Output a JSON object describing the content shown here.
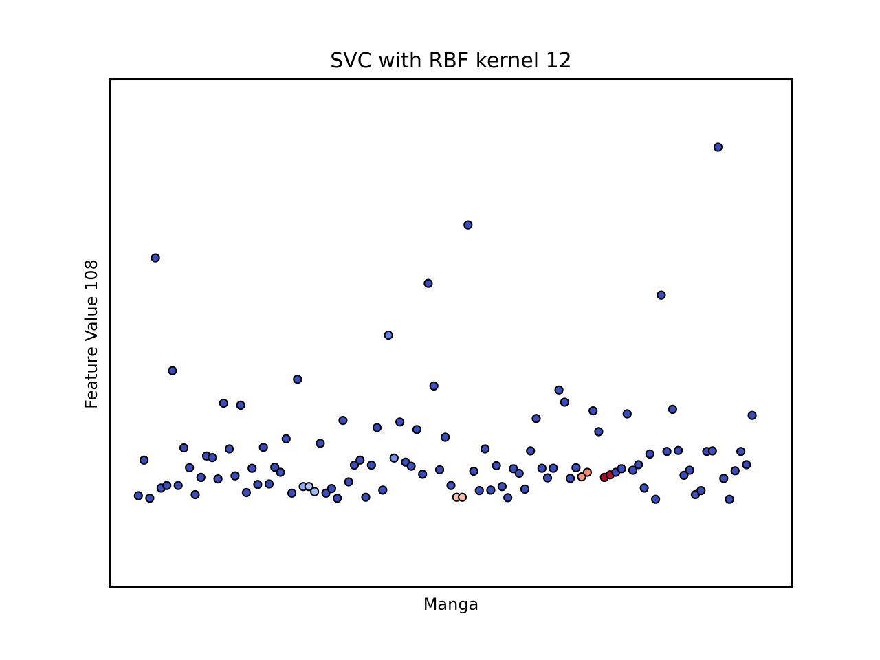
{
  "chart_data": {
    "type": "scatter",
    "title": "SVC with RBF kernel 12",
    "xlabel": "Manga",
    "ylabel": "Feature Value 108",
    "xlim": [
      0,
      120
    ],
    "ylim": [
      0,
      100
    ],
    "xticks": "none",
    "yticks": "none",
    "grid": false,
    "legend": "none",
    "colormap": "coolwarm",
    "marker_edge_color": "#000000",
    "points": [
      {
        "x": 5,
        "y": 18.0,
        "c": 0.0
      },
      {
        "x": 6,
        "y": 25.0,
        "c": 0.0
      },
      {
        "x": 7,
        "y": 17.5,
        "c": 0.0
      },
      {
        "x": 8,
        "y": 64.8,
        "c": 0.0
      },
      {
        "x": 9,
        "y": 19.5,
        "c": 0.0
      },
      {
        "x": 10,
        "y": 20.0,
        "c": 0.0
      },
      {
        "x": 11,
        "y": 42.6,
        "c": 0.0
      },
      {
        "x": 12,
        "y": 20.0,
        "c": 0.0
      },
      {
        "x": 13,
        "y": 27.4,
        "c": 0.0
      },
      {
        "x": 14,
        "y": 23.5,
        "c": 0.0
      },
      {
        "x": 15,
        "y": 18.2,
        "c": 0.0
      },
      {
        "x": 16,
        "y": 21.6,
        "c": 0.0
      },
      {
        "x": 17,
        "y": 25.8,
        "c": 0.0
      },
      {
        "x": 18,
        "y": 25.5,
        "c": 0.0
      },
      {
        "x": 19,
        "y": 21.3,
        "c": 0.0
      },
      {
        "x": 20,
        "y": 36.2,
        "c": 0.0
      },
      {
        "x": 21,
        "y": 27.2,
        "c": 0.0
      },
      {
        "x": 22,
        "y": 21.9,
        "c": 0.0
      },
      {
        "x": 23,
        "y": 35.8,
        "c": 0.0
      },
      {
        "x": 24,
        "y": 18.6,
        "c": 0.0
      },
      {
        "x": 25,
        "y": 23.4,
        "c": 0.0
      },
      {
        "x": 26,
        "y": 20.2,
        "c": 0.0
      },
      {
        "x": 27,
        "y": 27.5,
        "c": 0.0
      },
      {
        "x": 28,
        "y": 20.3,
        "c": 0.0
      },
      {
        "x": 29,
        "y": 23.6,
        "c": 0.0
      },
      {
        "x": 30,
        "y": 22.6,
        "c": 0.0
      },
      {
        "x": 31,
        "y": 29.2,
        "c": 0.0
      },
      {
        "x": 32,
        "y": 18.5,
        "c": 0.0
      },
      {
        "x": 33,
        "y": 40.9,
        "c": 0.0
      },
      {
        "x": 34,
        "y": 19.8,
        "c": 0.3
      },
      {
        "x": 35,
        "y": 19.8,
        "c": 0.4
      },
      {
        "x": 36,
        "y": 18.8,
        "c": 0.35
      },
      {
        "x": 37,
        "y": 28.3,
        "c": 0.0
      },
      {
        "x": 38,
        "y": 18.5,
        "c": 0.0
      },
      {
        "x": 39,
        "y": 19.4,
        "c": 0.0
      },
      {
        "x": 40,
        "y": 17.5,
        "c": 0.0
      },
      {
        "x": 41,
        "y": 32.8,
        "c": 0.0
      },
      {
        "x": 42,
        "y": 20.7,
        "c": 0.0
      },
      {
        "x": 43,
        "y": 24.0,
        "c": 0.0
      },
      {
        "x": 44,
        "y": 25.0,
        "c": 0.0
      },
      {
        "x": 45,
        "y": 17.7,
        "c": 0.0
      },
      {
        "x": 46,
        "y": 24.0,
        "c": 0.0
      },
      {
        "x": 47,
        "y": 31.4,
        "c": 0.0
      },
      {
        "x": 48,
        "y": 19.1,
        "c": 0.0
      },
      {
        "x": 49,
        "y": 49.6,
        "c": 0.15
      },
      {
        "x": 50,
        "y": 25.4,
        "c": 0.2
      },
      {
        "x": 51,
        "y": 32.5,
        "c": 0.0
      },
      {
        "x": 52,
        "y": 24.6,
        "c": 0.0
      },
      {
        "x": 53,
        "y": 23.8,
        "c": 0.0
      },
      {
        "x": 54,
        "y": 31.0,
        "c": 0.0
      },
      {
        "x": 55,
        "y": 22.2,
        "c": 0.0
      },
      {
        "x": 56,
        "y": 59.8,
        "c": 0.0
      },
      {
        "x": 57,
        "y": 39.6,
        "c": 0.0
      },
      {
        "x": 58,
        "y": 23.1,
        "c": 0.0
      },
      {
        "x": 59,
        "y": 29.5,
        "c": 0.0
      },
      {
        "x": 60,
        "y": 20.0,
        "c": 0.0
      },
      {
        "x": 61,
        "y": 17.7,
        "c": 0.6
      },
      {
        "x": 62,
        "y": 17.7,
        "c": 0.62
      },
      {
        "x": 63,
        "y": 71.3,
        "c": 0.0
      },
      {
        "x": 64,
        "y": 22.8,
        "c": 0.0
      },
      {
        "x": 65,
        "y": 19.0,
        "c": 0.0
      },
      {
        "x": 66,
        "y": 27.2,
        "c": 0.0
      },
      {
        "x": 67,
        "y": 19.1,
        "c": 0.0
      },
      {
        "x": 68,
        "y": 23.9,
        "c": 0.0
      },
      {
        "x": 69,
        "y": 19.8,
        "c": 0.0
      },
      {
        "x": 70,
        "y": 17.6,
        "c": 0.0
      },
      {
        "x": 71,
        "y": 23.3,
        "c": 0.0
      },
      {
        "x": 72,
        "y": 22.4,
        "c": 0.0
      },
      {
        "x": 73,
        "y": 19.3,
        "c": 0.0
      },
      {
        "x": 74,
        "y": 26.8,
        "c": 0.0
      },
      {
        "x": 75,
        "y": 33.2,
        "c": 0.0
      },
      {
        "x": 76,
        "y": 23.4,
        "c": 0.0
      },
      {
        "x": 77,
        "y": 21.5,
        "c": 0.0
      },
      {
        "x": 78,
        "y": 23.4,
        "c": 0.0
      },
      {
        "x": 79,
        "y": 38.8,
        "c": 0.0
      },
      {
        "x": 80,
        "y": 36.4,
        "c": 0.0
      },
      {
        "x": 81,
        "y": 21.4,
        "c": 0.0
      },
      {
        "x": 82,
        "y": 23.5,
        "c": 0.0
      },
      {
        "x": 83,
        "y": 21.7,
        "c": 0.75
      },
      {
        "x": 84,
        "y": 22.6,
        "c": 0.78
      },
      {
        "x": 85,
        "y": 34.7,
        "c": 0.0
      },
      {
        "x": 86,
        "y": 30.6,
        "c": 0.0
      },
      {
        "x": 87,
        "y": 21.6,
        "c": 1.0
      },
      {
        "x": 88,
        "y": 22.1,
        "c": 0.98
      },
      {
        "x": 89,
        "y": 22.6,
        "c": 0.0
      },
      {
        "x": 90,
        "y": 23.3,
        "c": 0.0
      },
      {
        "x": 91,
        "y": 34.1,
        "c": 0.0
      },
      {
        "x": 92,
        "y": 23.0,
        "c": 0.0
      },
      {
        "x": 93,
        "y": 24.1,
        "c": 0.0
      },
      {
        "x": 94,
        "y": 19.5,
        "c": 0.0
      },
      {
        "x": 95,
        "y": 26.2,
        "c": 0.0
      },
      {
        "x": 96,
        "y": 17.3,
        "c": 0.0
      },
      {
        "x": 97,
        "y": 57.5,
        "c": 0.0
      },
      {
        "x": 98,
        "y": 26.7,
        "c": 0.0
      },
      {
        "x": 99,
        "y": 35.0,
        "c": 0.0
      },
      {
        "x": 100,
        "y": 26.9,
        "c": 0.0
      },
      {
        "x": 101,
        "y": 22.0,
        "c": 0.0
      },
      {
        "x": 102,
        "y": 23.0,
        "c": 0.0
      },
      {
        "x": 103,
        "y": 18.2,
        "c": 0.0
      },
      {
        "x": 104,
        "y": 19.0,
        "c": 0.0
      },
      {
        "x": 105,
        "y": 26.7,
        "c": 0.0
      },
      {
        "x": 106,
        "y": 26.8,
        "c": 0.0
      },
      {
        "x": 107,
        "y": 86.6,
        "c": 0.0
      },
      {
        "x": 108,
        "y": 21.4,
        "c": 0.0
      },
      {
        "x": 109,
        "y": 17.3,
        "c": 0.0
      },
      {
        "x": 110,
        "y": 22.9,
        "c": 0.0
      },
      {
        "x": 111,
        "y": 26.7,
        "c": 0.0
      },
      {
        "x": 112,
        "y": 24.1,
        "c": 0.0
      },
      {
        "x": 113,
        "y": 33.8,
        "c": 0.0
      }
    ]
  }
}
